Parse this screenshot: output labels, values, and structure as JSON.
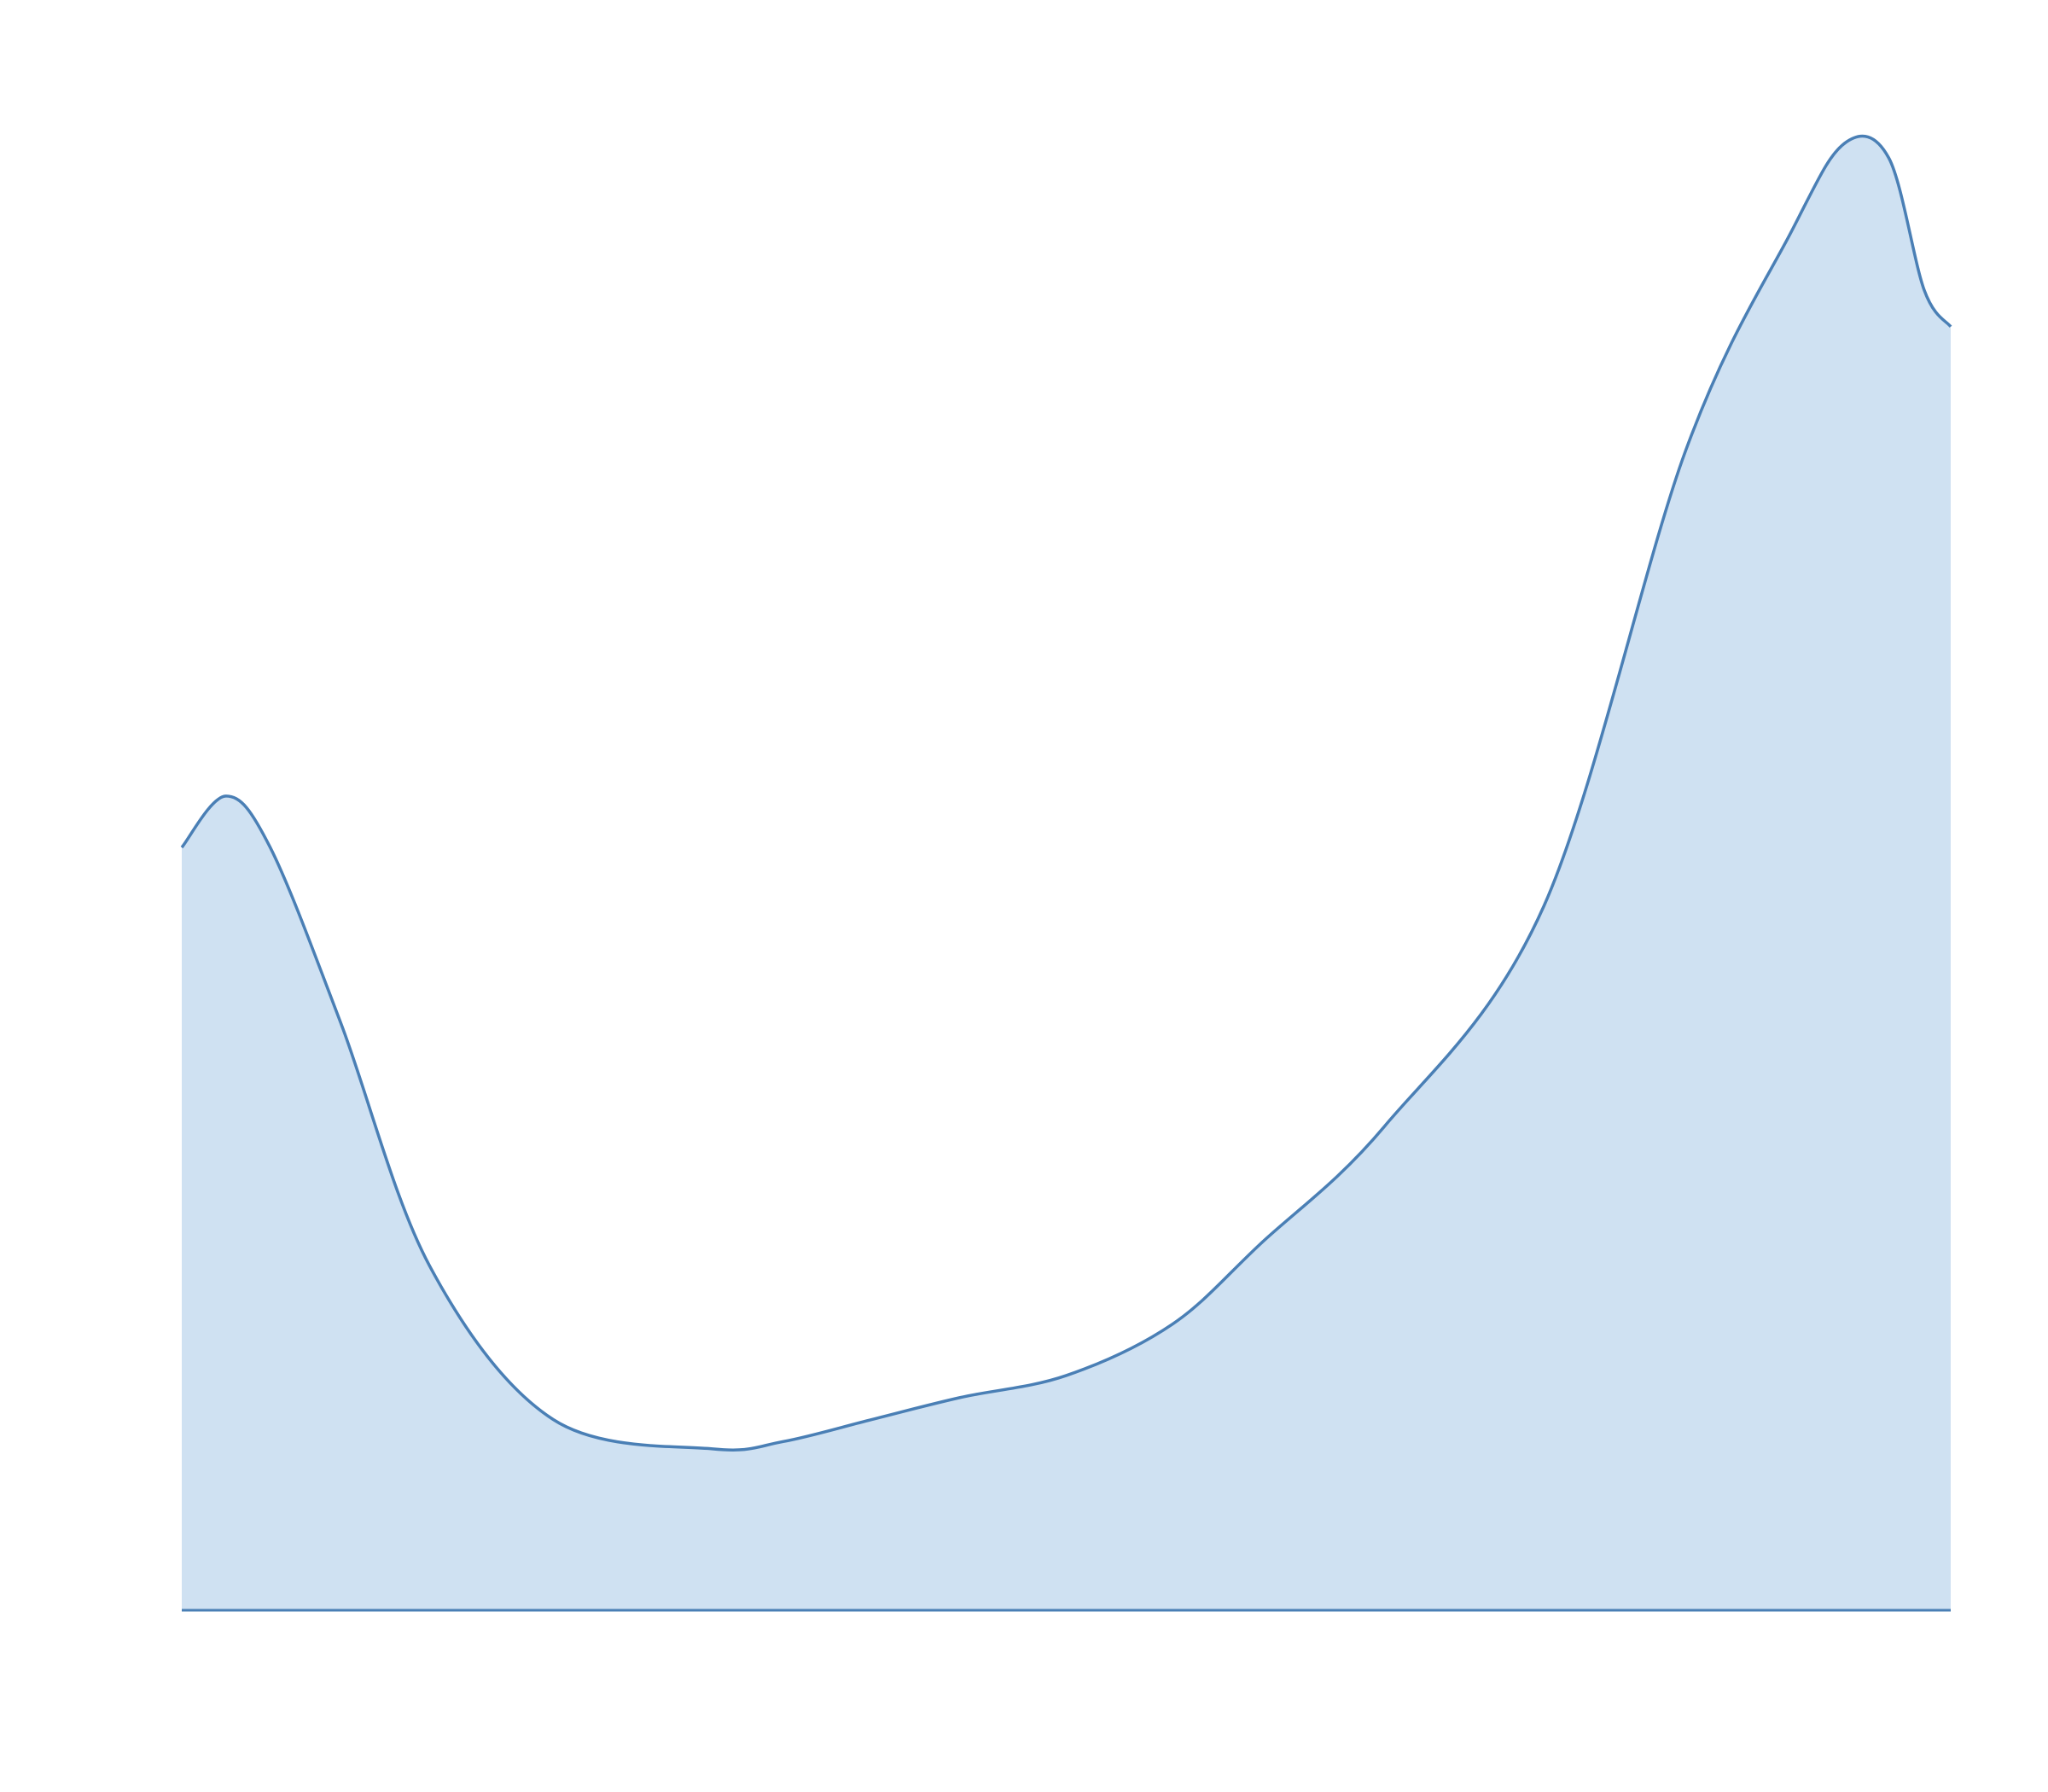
{
  "chart_data": {
    "type": "area",
    "x": [
      0,
      0.025,
      0.05,
      0.09,
      0.14,
      0.21,
      0.3,
      0.34,
      0.39,
      0.44,
      0.5,
      0.56,
      0.61,
      0.68,
      0.77,
      0.85,
      0.91,
      0.94,
      0.965,
      0.985,
      1.0
    ],
    "values": [
      0.52,
      0.555,
      0.52,
      0.4,
      0.235,
      0.13,
      0.11,
      0.115,
      0.13,
      0.145,
      0.16,
      0.195,
      0.25,
      0.33,
      0.48,
      0.79,
      0.94,
      1.0,
      0.99,
      0.9,
      0.875
    ],
    "xlim": [
      0,
      1
    ],
    "ylim": [
      0,
      1.05
    ],
    "grid": false,
    "colors": {
      "line": "#4a7fb5",
      "fill": "#cfe1f2"
    }
  }
}
